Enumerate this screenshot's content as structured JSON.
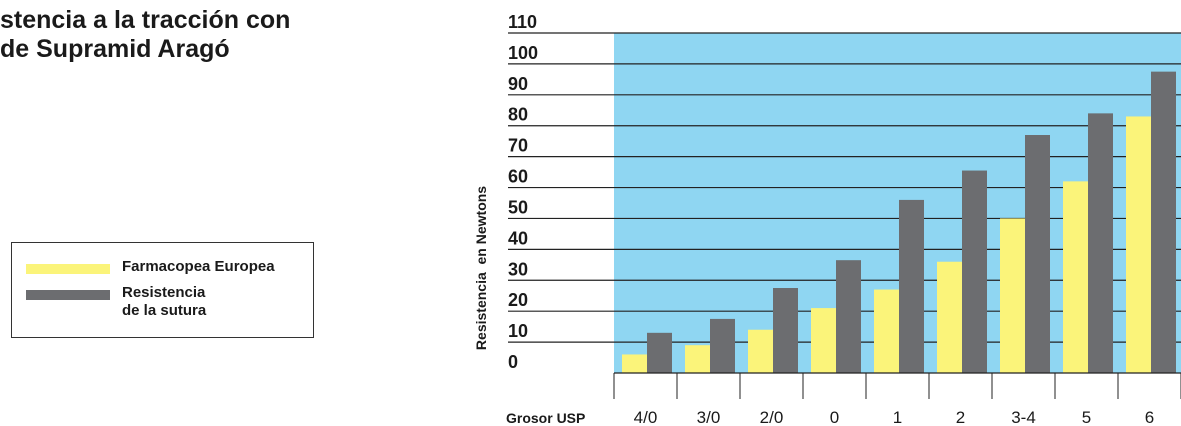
{
  "title": {
    "line1": "stencia a la tracción con",
    "line2": "de Supramid Aragó"
  },
  "legend": {
    "items": [
      {
        "label": "Farmacopea Europea",
        "color": "#fbf47a"
      },
      {
        "label_line1": "Resistencia",
        "label_line2": "de la sutura",
        "color": "#6c6d70"
      }
    ]
  },
  "colors": {
    "plot_background": "#8fd6f2",
    "series_europea": "#fbf47a",
    "series_sutura": "#6c6d70",
    "gridline": "#222222"
  },
  "chart_data": {
    "type": "bar",
    "title": "stencia a la tracción con de Supramid Aragó",
    "xlabel": "Grosor USP",
    "ylabel": "Resistencia  en Newtons",
    "categories": [
      "4/0",
      "3/0",
      "2/0",
      "0",
      "1",
      "2",
      "3-4",
      "5",
      "6"
    ],
    "series": [
      {
        "name": "Farmacopea Europea",
        "values": [
          6,
          9,
          14,
          21,
          27,
          36,
          50,
          62,
          83
        ]
      },
      {
        "name": "Resistencia de la sutura",
        "values": [
          13,
          17.5,
          27.5,
          36.5,
          56,
          65.5,
          77,
          84,
          97.5
        ]
      }
    ],
    "ylim": [
      0,
      110
    ],
    "yticks": [
      0,
      10,
      20,
      30,
      40,
      50,
      60,
      70,
      80,
      90,
      100,
      110
    ],
    "grid": true,
    "legend_position": "left"
  }
}
